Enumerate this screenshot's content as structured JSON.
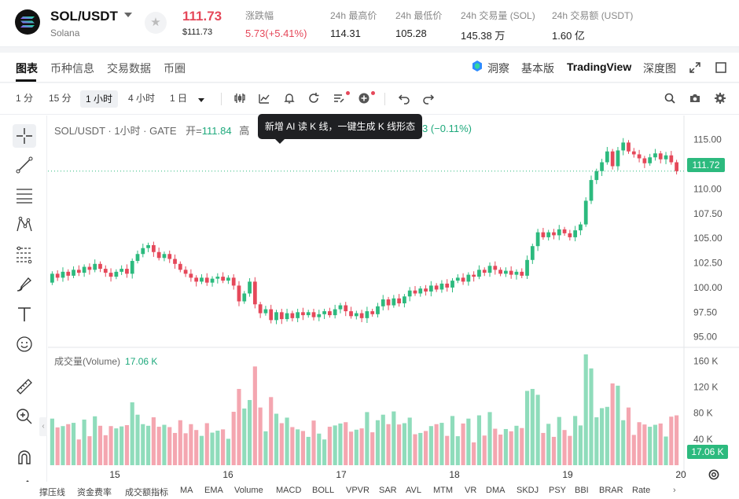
{
  "header": {
    "pair": "SOL/USDT",
    "pair_sub": "Solana",
    "price": "111.73",
    "price_sub": "$111.73",
    "stats": [
      {
        "label": "涨跌幅",
        "value": "5.73(+5.41%)",
        "tone": "red"
      },
      {
        "label": "24h 最高价",
        "value": "114.31"
      },
      {
        "label": "24h 最低价",
        "value": "105.28"
      },
      {
        "label": "24h 交易量 (SOL)",
        "value": "145.38 万"
      },
      {
        "label": "24h 交易额 (USDT)",
        "value": "1.60 亿"
      }
    ],
    "icons": {
      "favorite": "star-icon",
      "dropdown": "caret-down-icon",
      "logo": "solana-logo"
    }
  },
  "tabs": {
    "left": [
      "图表",
      "币种信息",
      "交易数据",
      "币圈"
    ],
    "active": "图表",
    "right": {
      "insight": "洞察",
      "basic": "基本版",
      "tradingview": "TradingView",
      "depth": "深度图"
    }
  },
  "toolbar": {
    "timeframes": [
      "1 分",
      "15 分",
      "1 小时",
      "4 小时",
      "1 日"
    ],
    "active_timeframe": "1 小时",
    "icons": [
      "candle-type-icon",
      "indicator-icon",
      "alert-icon",
      "replay-icon",
      "ai-kline-icon",
      "add-icon",
      "undo-icon",
      "redo-icon",
      "search-icon",
      "camera-icon",
      "settings-icon"
    ]
  },
  "tooltip": {
    "text": "新增 AI 读 K 线，一键生成 K 线形态"
  },
  "legend": {
    "symbol": "SOL/USDT · 1小时 · GATE",
    "open_label": "开=",
    "open_value": "111.84",
    "high_label": "高",
    "change_tail": "3 (−0.11%)"
  },
  "volume_legend": {
    "label": "成交量(Volume)",
    "value": "17.06 K"
  },
  "price_tag": "111.72",
  "volume_tag": "17.06 K",
  "indicators": [
    "撑压线",
    "资金费率",
    "成交额指标",
    "MA",
    "EMA",
    "Volume",
    "MACD",
    "BOLL",
    "VPVR",
    "SAR",
    "AVL",
    "MTM",
    "VR",
    "DMA",
    "SKDJ",
    "PSY",
    "BBI",
    "BRAR",
    "Rate"
  ],
  "chart_data": {
    "type": "candlestick",
    "price_axis": {
      "ticks": [
        "115.00",
        "112.50",
        "110.00",
        "107.50",
        "105.00",
        "102.50",
        "100.00",
        "97.50",
        "95.00"
      ],
      "ylim": [
        94.1,
        117.2
      ]
    },
    "volume_axis": {
      "ticks": [
        "160 K",
        "120 K",
        "80 K",
        "40 K"
      ],
      "ylim": [
        0,
        176
      ]
    },
    "x_labels": [
      "15",
      "16",
      "17",
      "18",
      "19",
      "20"
    ],
    "candles": [
      [
        100.5,
        101.4
      ],
      [
        101.4,
        101.0
      ],
      [
        101.0,
        101.6
      ],
      [
        101.6,
        101.2
      ],
      [
        101.2,
        101.8
      ],
      [
        101.8,
        101.5
      ],
      [
        101.5,
        102.1
      ],
      [
        102.1,
        101.8
      ],
      [
        101.8,
        102.4
      ],
      [
        102.4,
        101.9
      ],
      [
        101.9,
        101.5
      ],
      [
        101.5,
        101.1
      ],
      [
        101.1,
        101.6
      ],
      [
        101.6,
        101.9
      ],
      [
        101.9,
        101.4
      ],
      [
        101.4,
        102.7
      ],
      [
        102.7,
        103.4
      ],
      [
        103.4,
        104.0
      ],
      [
        104.0,
        104.3
      ],
      [
        104.3,
        103.6
      ],
      [
        103.6,
        103.0
      ],
      [
        103.0,
        103.4
      ],
      [
        103.4,
        102.9
      ],
      [
        102.9,
        102.4
      ],
      [
        102.4,
        101.8
      ],
      [
        101.8,
        101.4
      ],
      [
        101.4,
        101.0
      ],
      [
        101.0,
        100.6
      ],
      [
        100.6,
        101.0
      ],
      [
        101.0,
        100.5
      ],
      [
        100.5,
        100.9
      ],
      [
        100.9,
        101.1
      ],
      [
        101.1,
        100.7
      ],
      [
        100.7,
        101.0
      ],
      [
        101.0,
        100.2
      ],
      [
        100.2,
        98.6
      ],
      [
        98.6,
        99.4
      ],
      [
        99.4,
        100.6
      ],
      [
        100.6,
        98.3
      ],
      [
        98.3,
        97.4
      ],
      [
        97.4,
        97.8
      ],
      [
        97.8,
        96.7
      ],
      [
        96.7,
        97.5
      ],
      [
        97.5,
        96.8
      ],
      [
        96.8,
        97.4
      ],
      [
        97.4,
        96.9
      ],
      [
        96.9,
        97.5
      ],
      [
        97.5,
        97.2
      ],
      [
        97.2,
        97.5
      ],
      [
        97.5,
        97.0
      ],
      [
        97.0,
        97.3
      ],
      [
        97.3,
        97.6
      ],
      [
        97.6,
        97.2
      ],
      [
        97.2,
        97.8
      ],
      [
        97.8,
        98.2
      ],
      [
        98.2,
        97.6
      ],
      [
        97.6,
        97.1
      ],
      [
        97.1,
        97.4
      ],
      [
        97.4,
        96.9
      ],
      [
        96.9,
        97.6
      ],
      [
        97.6,
        97.3
      ],
      [
        97.3,
        98.1
      ],
      [
        98.1,
        98.8
      ],
      [
        98.8,
        98.2
      ],
      [
        98.2,
        98.9
      ],
      [
        98.9,
        98.4
      ],
      [
        98.4,
        99.1
      ],
      [
        99.1,
        99.7
      ],
      [
        99.7,
        99.4
      ],
      [
        99.4,
        99.9
      ],
      [
        99.9,
        99.6
      ],
      [
        99.6,
        100.2
      ],
      [
        100.2,
        99.8
      ],
      [
        99.8,
        100.4
      ],
      [
        100.4,
        100.0
      ],
      [
        100.0,
        100.7
      ],
      [
        100.7,
        101.0
      ],
      [
        101.0,
        100.6
      ],
      [
        100.6,
        101.3
      ],
      [
        101.3,
        101.1
      ],
      [
        101.1,
        101.8
      ],
      [
        101.8,
        101.5
      ],
      [
        101.5,
        102.2
      ],
      [
        102.2,
        101.8
      ],
      [
        101.8,
        101.4
      ],
      [
        101.4,
        101.7
      ],
      [
        101.7,
        101.3
      ],
      [
        101.3,
        101.6
      ],
      [
        101.6,
        101.2
      ],
      [
        101.2,
        102.8
      ],
      [
        102.8,
        104.2
      ],
      [
        104.2,
        105.6
      ],
      [
        105.6,
        105.1
      ],
      [
        105.1,
        105.6
      ],
      [
        105.6,
        105.3
      ],
      [
        105.3,
        105.9
      ],
      [
        105.9,
        105.5
      ],
      [
        105.5,
        105.1
      ],
      [
        105.1,
        105.8
      ],
      [
        105.8,
        106.4
      ],
      [
        106.4,
        108.8
      ],
      [
        108.8,
        110.9
      ],
      [
        110.9,
        111.8
      ],
      [
        111.8,
        112.7
      ],
      [
        112.7,
        113.8
      ],
      [
        113.8,
        112.3
      ],
      [
        112.3,
        113.9
      ],
      [
        113.9,
        114.7
      ],
      [
        114.7,
        113.8
      ],
      [
        113.8,
        113.5
      ],
      [
        113.5,
        113.1
      ],
      [
        113.1,
        112.6
      ],
      [
        112.6,
        113.2
      ],
      [
        113.2,
        113.6
      ],
      [
        113.6,
        113.0
      ],
      [
        113.0,
        113.4
      ],
      [
        113.4,
        112.7
      ],
      [
        112.7,
        111.8
      ]
    ]
  }
}
